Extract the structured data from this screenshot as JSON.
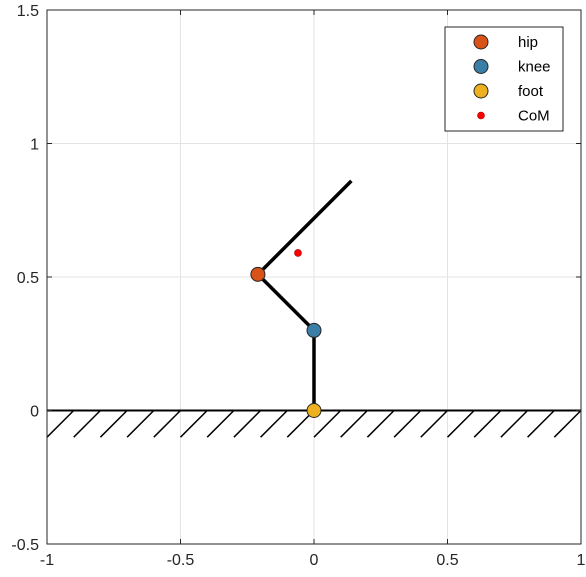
{
  "chart_data": {
    "type": "scatter",
    "title": "",
    "xlabel": "",
    "ylabel": "",
    "xlim": [
      -1,
      1
    ],
    "ylim": [
      -0.5,
      1.5
    ],
    "grid": true,
    "x_ticks": [
      -1,
      -0.5,
      0,
      0.5,
      1
    ],
    "x_tick_labels": [
      "-1",
      "-0.5",
      "0",
      "0.5",
      "1"
    ],
    "y_ticks": [
      -0.5,
      0,
      0.5,
      1,
      1.5
    ],
    "y_tick_labels": [
      "-0.5",
      "0",
      "0.5",
      "1",
      "1.5"
    ],
    "ground": {
      "y": 0
    },
    "links": [
      {
        "name": "torso",
        "from": [
          -0.21,
          0.51
        ],
        "to": [
          0.14,
          0.86
        ]
      },
      {
        "name": "thigh",
        "from": [
          -0.21,
          0.51
        ],
        "to": [
          0.0,
          0.3
        ]
      },
      {
        "name": "shank",
        "from": [
          0.0,
          0.3
        ],
        "to": [
          0.0,
          0.0
        ]
      }
    ],
    "series": [
      {
        "name": "hip",
        "x": [
          -0.21
        ],
        "y": [
          0.51
        ],
        "color": "#D95319",
        "marker": "large"
      },
      {
        "name": "knee",
        "x": [
          0.0
        ],
        "y": [
          0.3
        ],
        "color": "#3A7FA8",
        "marker": "large"
      },
      {
        "name": "foot",
        "x": [
          0.0
        ],
        "y": [
          0.0
        ],
        "color": "#EDB120",
        "marker": "large"
      },
      {
        "name": "CoM",
        "x": [
          -0.06
        ],
        "y": [
          0.59
        ],
        "color": "#FF0000",
        "marker": "small"
      }
    ],
    "legend": {
      "position": "top-right"
    }
  }
}
